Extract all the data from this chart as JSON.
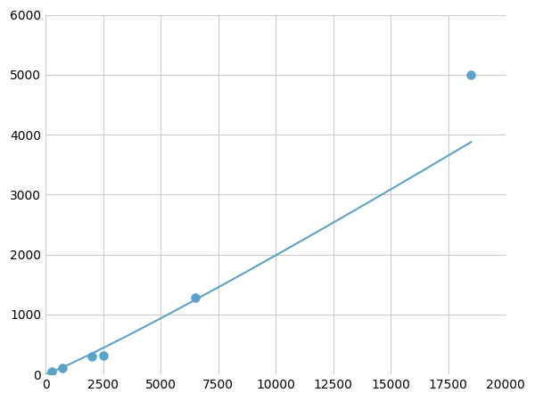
{
  "x_points": [
    250,
    750,
    2000,
    2500,
    6500,
    18500
  ],
  "y_points": [
    50,
    100,
    300,
    320,
    1280,
    5000
  ],
  "line_color": "#5BA3C9",
  "marker_color": "#5BA3C9",
  "marker_size": 7,
  "linewidth": 1.5,
  "xlim": [
    0,
    20000
  ],
  "ylim": [
    0,
    6000
  ],
  "xticks": [
    0,
    2500,
    5000,
    7500,
    10000,
    12500,
    15000,
    17500,
    20000
  ],
  "yticks": [
    0,
    1000,
    2000,
    3000,
    4000,
    5000,
    6000
  ],
  "grid_color": "#cccccc",
  "background_color": "#ffffff",
  "tick_fontsize": 10
}
